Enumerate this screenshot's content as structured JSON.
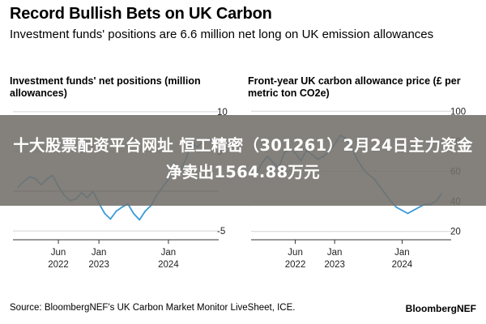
{
  "header": {
    "title": "Record Bullish Bets on UK Carbon",
    "subtitle": "Investment funds' positions are 6.6 million net long on UK emission allowances"
  },
  "footer": {
    "source": "Source: BloombergNEF's UK Carbon Market Monitor LiveSheet, ICE.",
    "brand": "BloombergNEF"
  },
  "overlay": {
    "text": "十大股票配资平台网址 恒工精密（301261）2月24日主力资金净卖出1564.88万元"
  },
  "chart_data": [
    {
      "type": "line",
      "title": "Investment funds' net positions (million allowances)",
      "x_ticks": [
        {
          "label": "Jun\n2022",
          "t": "2022-06"
        },
        {
          "label": "Jan\n2023",
          "t": "2023-01"
        },
        {
          "label": "Jan\n2024",
          "t": "2024-01"
        }
      ],
      "y_ticks": [
        10,
        5,
        -5
      ],
      "ylim": [
        -6,
        11
      ],
      "axis_side": "right",
      "line_color": "#3a9bd5",
      "series": [
        {
          "x": [
            "2021-11",
            "2021-12",
            "2022-01",
            "2022-02",
            "2022-03",
            "2022-04",
            "2022-05",
            "2022-06",
            "2022-07",
            "2022-08",
            "2022-09",
            "2022-10",
            "2022-11",
            "2022-12",
            "2023-01",
            "2023-02",
            "2023-03",
            "2023-04",
            "2023-05",
            "2023-06",
            "2023-07",
            "2023-08",
            "2023-09",
            "2023-10",
            "2023-11",
            "2023-12",
            "2024-01",
            "2024-02",
            "2024-03",
            "2024-04",
            "2024-05",
            "2024-06",
            "2024-07",
            "2024-08"
          ],
          "values": [
            0.5,
            1.2,
            1.8,
            1.6,
            0.8,
            1.5,
            2.0,
            0.6,
            -0.5,
            -1.2,
            -1.0,
            -0.2,
            -0.8,
            0.0,
            -1.5,
            -2.8,
            -3.5,
            -2.5,
            -2.0,
            -1.6,
            -2.8,
            -3.6,
            -2.5,
            -1.8,
            -0.5,
            0.5,
            1.5,
            3.5,
            2.5,
            4.0,
            6.0,
            5.5,
            6.3,
            6.6
          ]
        }
      ]
    },
    {
      "type": "line",
      "title": "Front-year UK carbon allowance price (£ per metric ton CO2e)",
      "x_ticks": [
        {
          "label": "Jun\n2022",
          "t": "2022-06"
        },
        {
          "label": "Jan\n2023",
          "t": "2023-01"
        },
        {
          "label": "Jan\n2024",
          "t": "2024-01"
        }
      ],
      "y_ticks": [
        100,
        80,
        60,
        40,
        20
      ],
      "ylim": [
        15,
        105
      ],
      "axis_side": "right",
      "line_color": "#3a9bd5",
      "series": [
        {
          "x": [
            "2021-11",
            "2021-12",
            "2022-01",
            "2022-02",
            "2022-03",
            "2022-04",
            "2022-05",
            "2022-06",
            "2022-07",
            "2022-08",
            "2022-09",
            "2022-10",
            "2022-11",
            "2022-12",
            "2023-01",
            "2023-02",
            "2023-03",
            "2023-04",
            "2023-05",
            "2023-06",
            "2023-07",
            "2023-08",
            "2023-09",
            "2023-10",
            "2023-11",
            "2023-12",
            "2024-01",
            "2024-02",
            "2024-03",
            "2024-04",
            "2024-05",
            "2024-06",
            "2024-07",
            "2024-08"
          ],
          "values": [
            58,
            65,
            70,
            66,
            62,
            72,
            75,
            72,
            67,
            74,
            71,
            68,
            70,
            73,
            78,
            84,
            82,
            76,
            68,
            62,
            58,
            55,
            50,
            45,
            40,
            36,
            34,
            32,
            34,
            36,
            38,
            38,
            40,
            45
          ]
        }
      ]
    }
  ]
}
